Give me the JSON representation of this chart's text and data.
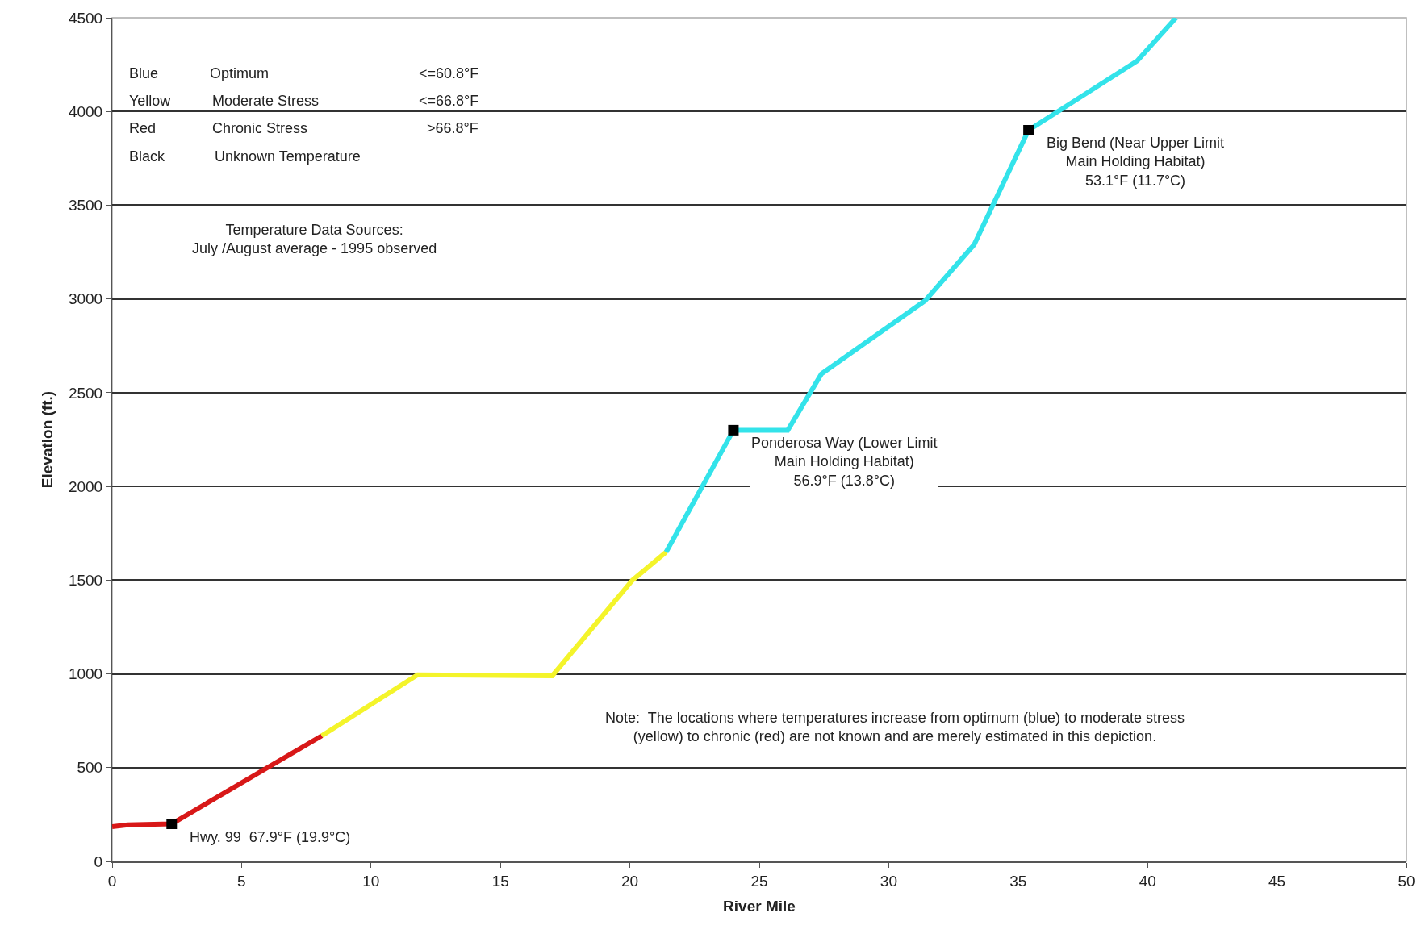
{
  "chart_data": {
    "type": "line",
    "xlabel": "River Mile",
    "ylabel": "Elevation (ft.)",
    "xlim": [
      0,
      50
    ],
    "xticks": [
      0,
      5,
      10,
      15,
      20,
      25,
      30,
      35,
      40,
      45,
      50
    ],
    "ylim": [
      0,
      4500
    ],
    "yticks": [
      0,
      500,
      1000,
      1500,
      2000,
      2500,
      3000,
      3500,
      4000,
      4500
    ],
    "grid": "y",
    "marker": "none",
    "line_style": "solid",
    "series": [
      {
        "color": "#d81818",
        "x": [
          0,
          0.6,
          2.3,
          8.1
        ],
        "values": [
          185,
          195,
          200,
          670
        ]
      },
      {
        "color": "#f4f42a",
        "x": [
          8.1,
          11.8,
          17.0,
          20.1,
          21.4
        ],
        "values": [
          670,
          995,
          990,
          1500,
          1650
        ]
      },
      {
        "color": "#33e3ea",
        "x": [
          21.4,
          24.0,
          26.1,
          27.4,
          31.4,
          33.3,
          35.4,
          39.6,
          41.1
        ],
        "values": [
          1650,
          2300,
          2300,
          2600,
          2990,
          3290,
          3900,
          4270,
          4500
        ]
      },
      {
        "type": "scatter",
        "marker": "square",
        "color": "#000000",
        "x": [
          2.3,
          24.0,
          35.4
        ],
        "values": [
          200,
          2300,
          3900
        ]
      }
    ],
    "annotations": [
      "Blue",
      "Optimum",
      "<=60.8°F",
      "Yellow",
      "Moderate Stress",
      "<=66.8°F",
      "Red",
      "Chronic Stress",
      ">66.8°F",
      "Black",
      "Unknown Temperature",
      "Temperature Data Sources:\nJuly /August average - 1995 observed",
      "Note:  The locations where temperatures increase from optimum (blue) to moderate stress\n(yellow) to chronic (red) are not known and are merely estimated in this depiction.",
      {
        "text": "Hwy. 99  67.9°F (19.9°C)",
        "x": 2.3,
        "y": 200
      },
      {
        "text": "Ponderosa Way (Lower Limit\nMain Holding Habitat)\n56.9°F (13.8°C)",
        "x": 24.0,
        "y": 2300
      },
      {
        "text": "Big Bend (Near Upper Limit\nMain Holding Habitat)\n53.1°F (11.7°C)",
        "x": 35.4,
        "y": 3900
      }
    ]
  }
}
